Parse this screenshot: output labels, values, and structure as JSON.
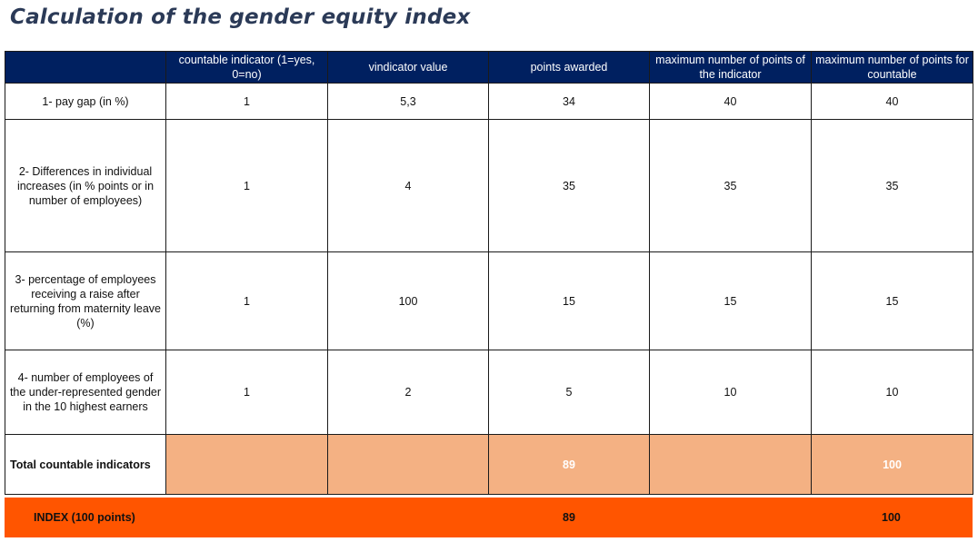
{
  "title": "Calculation of the gender equity index",
  "headers": [
    "",
    "countable indicator (1=yes, 0=no)",
    "vindicator value",
    "points awarded",
    "maximum number of points of the indicator",
    "maximum number of points for countable"
  ],
  "rows": [
    {
      "label": "1- pay gap (in %)",
      "countable": "1",
      "value": "5,3",
      "points": "34",
      "max_indicator": "40",
      "max_countable": "40"
    },
    {
      "label": "2- Differences in individual increases (in % points or in number of employees)",
      "countable": "1",
      "value": "4",
      "points": "35",
      "max_indicator": "35",
      "max_countable": "35"
    },
    {
      "label": "3- percentage of employees receiving a raise after returning from maternity leave (%)",
      "countable": "1",
      "value": "100",
      "points": "15",
      "max_indicator": "15",
      "max_countable": "15"
    },
    {
      "label": "4- number of employees of the under-represented gender in the 10 highest earners",
      "countable": "1",
      "value": "2",
      "points": "5",
      "max_indicator": "10",
      "max_countable": "10"
    }
  ],
  "total": {
    "label": "Total countable indicators",
    "points": "89",
    "max_countable": "100"
  },
  "index": {
    "label": "INDEX (100 points)",
    "points": "89",
    "max": "100"
  },
  "colors": {
    "header": "#002060",
    "total_fill": "#f4b183",
    "index_fill": "#ff5500",
    "title": "#2b3a57"
  }
}
